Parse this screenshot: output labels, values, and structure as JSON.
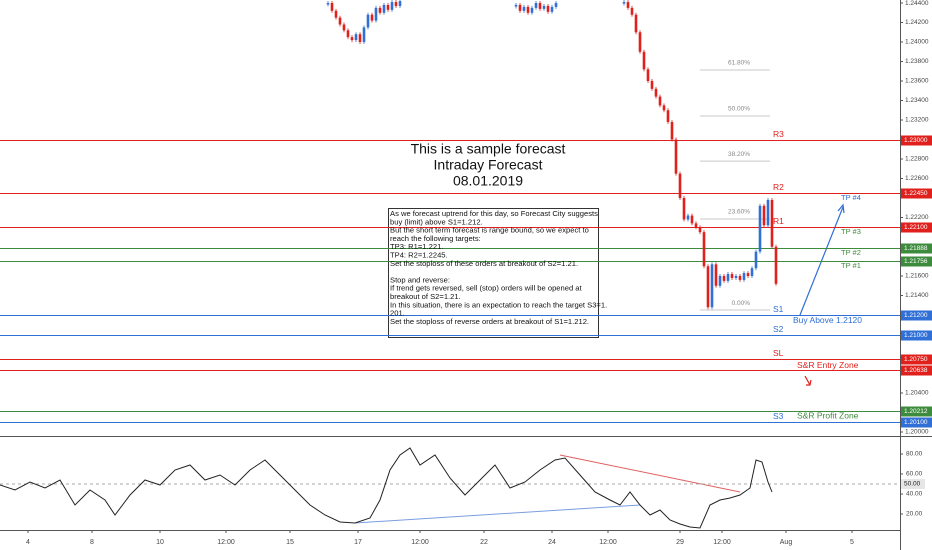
{
  "chart_data": {
    "type": "candlestick",
    "title": [
      "This is a sample forecast",
      "Intraday Forecast",
      "08.01.2019"
    ],
    "up_color": "#2f6fd6",
    "down_color": "#e0201c",
    "xlim": [
      0,
      225
    ],
    "xticks": [
      {
        "value": 7,
        "label": "4"
      },
      {
        "value": 23,
        "label": "8"
      },
      {
        "value": 40,
        "label": "10"
      },
      {
        "value": 56.5,
        "label": "12:00"
      },
      {
        "value": 72.5,
        "label": "15"
      },
      {
        "value": 89.5,
        "label": "17"
      },
      {
        "value": 105,
        "label": "12:00"
      },
      {
        "value": 121,
        "label": "22"
      },
      {
        "value": 138,
        "label": "24"
      },
      {
        "value": 152,
        "label": "12:00"
      },
      {
        "value": 170,
        "label": "29"
      },
      {
        "value": 180.5,
        "label": "12:00"
      },
      {
        "value": 196.5,
        "label": "Aug"
      },
      {
        "value": 213,
        "label": "5"
      }
    ],
    "ylim": [
      1.19959,
      1.24431
    ],
    "yticks": [
      {
        "value": 1.244,
        "label": "1.24400"
      },
      {
        "value": 1.242,
        "label": "1.24200"
      },
      {
        "value": 1.24,
        "label": "1.24000"
      },
      {
        "value": 1.238,
        "label": "1.23800"
      },
      {
        "value": 1.236,
        "label": "1.23600"
      },
      {
        "value": 1.234,
        "label": "1.23400"
      },
      {
        "value": 1.232,
        "label": "1.23200"
      },
      {
        "value": 1.228,
        "label": "1.22800"
      },
      {
        "value": 1.226,
        "label": "1.22600"
      },
      {
        "value": 1.222,
        "label": "1.22200"
      },
      {
        "value": 1.216,
        "label": "1.21600"
      },
      {
        "value": 1.214,
        "label": "1.21400"
      },
      {
        "value": 1.204,
        "label": "1.20400"
      },
      {
        "value": 1.2,
        "label": "1.20000"
      }
    ],
    "x": [
      82,
      83,
      84,
      85,
      86,
      87,
      88,
      89,
      90,
      91,
      92,
      93,
      94,
      95,
      96,
      97,
      98,
      99,
      100,
      101,
      129,
      130,
      131,
      132,
      133,
      134,
      135,
      136,
      137,
      138,
      139,
      140,
      156,
      157,
      158,
      159,
      160,
      161,
      162,
      163,
      164,
      165,
      166,
      167,
      168,
      169,
      170,
      171,
      172,
      173,
      174,
      175,
      176,
      177,
      178,
      179,
      180,
      181,
      182,
      183,
      184,
      185,
      186,
      187,
      188,
      189,
      190,
      191,
      192,
      193,
      194
    ],
    "values": [
      1.244,
      1.2432,
      1.2425,
      1.2418,
      1.2412,
      1.2405,
      1.2402,
      1.2408,
      1.24,
      1.2415,
      1.2428,
      1.2422,
      1.2435,
      1.243,
      1.2438,
      1.2433,
      1.2441,
      1.2437,
      1.2442,
      null,
      1.2438,
      1.2432,
      1.2436,
      1.243,
      1.2435,
      1.244,
      1.2434,
      1.2437,
      1.2431,
      1.2436,
      1.244,
      null,
      1.2441,
      1.2435,
      1.2428,
      1.241,
      1.239,
      1.2372,
      1.236,
      1.2352,
      1.2344,
      1.2335,
      1.233,
      1.2318,
      1.23,
      1.2265,
      1.224,
      1.2218,
      1.2222,
      1.2214,
      1.221,
      1.2205,
      1.217,
      1.2128,
      1.2172,
      1.215,
      1.216,
      1.2155,
      1.2162,
      1.2158,
      1.216,
      1.2156,
      1.2163,
      1.216,
      1.2168,
      1.2185,
      1.2232,
      1.2212,
      1.2238,
      1.219,
      1.2152
    ],
    "levels": {
      "values": [
        1.23,
        1.2245,
        1.221,
        1.21888,
        1.21756,
        1.212,
        1.21,
        1.2075,
        1.20638,
        1.20212,
        1.201
      ],
      "value_labels": [
        "1.23000",
        "1.22450",
        "1.22100",
        "1.21888",
        "1.21756",
        "1.21200",
        "1.21000",
        "1.20750",
        "1.20638",
        "1.20212",
        "1.20100"
      ],
      "colors": [
        "#e0201c",
        "#e0201c",
        "#e0201c",
        "#3d8b3d",
        "#3d8b3d",
        "#2f6fd6",
        "#2f6fd6",
        "#e0201c",
        "#e0201c",
        "#3d8b3d",
        "#2f6fd6"
      ],
      "names": [
        "R3",
        "R2",
        "R1",
        null,
        null,
        "S1",
        "S2",
        "SL",
        null,
        null,
        "S3"
      ]
    },
    "fib": {
      "values": [
        1.23713,
        1.23241,
        1.22779,
        1.22185,
        1.21251
      ],
      "value_labels": [
        "61.80%",
        "50.00%",
        "38.20%",
        "23.60%",
        "0.00%"
      ]
    },
    "targets": [
      {
        "text": "TP #4",
        "price": 1.2245,
        "color": "#2f6fd6"
      },
      {
        "text": "TP #3",
        "price": 1.221,
        "color": "#3d8b3d"
      },
      {
        "text": "TP #2",
        "price": 1.21888,
        "color": "#3d8b3d"
      },
      {
        "text": "TP #1",
        "price": 1.21756,
        "color": "#3d8b3d"
      }
    ],
    "notes": [
      {
        "text": "Buy Above 1.2120",
        "price": 1.2114,
        "color": "#2f6fd6"
      },
      {
        "text": "S&R Entry Zone",
        "price": 1.2068,
        "color": "#e0201c"
      },
      {
        "text": "S&R Profit Zone",
        "price": 1.2016,
        "color": "#3d8b3d"
      }
    ],
    "forecast_note": [
      [
        "As we forecast uptrend for this day, so Forecast City suggests",
        "buy (limit) above S1=1.212.",
        "But the short term forecast is range bound, so we expect to",
        "reach the following targets:",
        "TP3: R1=1.221.",
        "TP4: R2=1.2245.",
        "Set the stoploss of these orders at breakout of S2=1.21."
      ],
      [
        "Stop and reverse:",
        "If trend gets reversed, sell (stop) orders will be opened at",
        "breakout of S2=1.21.",
        "In this situation, there is an expectation to reach the target S3=1.",
        "201.",
        "Set the stoploss of reverse orders at breakout of S1=1.212."
      ]
    ],
    "rsi": {
      "color": "#222222",
      "ylim": [
        4,
        98
      ],
      "yticks": [
        {
          "value": 20,
          "label": "20.00"
        },
        {
          "value": 40,
          "label": "40.00"
        },
        {
          "value": 60,
          "label": "60.00"
        },
        {
          "value": 80,
          "label": "80.00"
        }
      ],
      "midline": {
        "value": 50,
        "label": "50.00"
      },
      "x": [
        0,
        3.75,
        7.5,
        11.25,
        15,
        18.75,
        22.5,
        26.25,
        28.75,
        32.5,
        36.25,
        40,
        43.75,
        47.5,
        51.25,
        55,
        58.75,
        62.5,
        66.25,
        70,
        73.75,
        77.5,
        81.25,
        85,
        88.75,
        92.5,
        95,
        97.5,
        100,
        102.5,
        105,
        108.75,
        112.5,
        116.25,
        120,
        123.75,
        127.5,
        131.25,
        135,
        138.75,
        141.25,
        145,
        148.75,
        152.5,
        155,
        157.5,
        160,
        162.5,
        165,
        167.5,
        170,
        172.5,
        175,
        177.5,
        180,
        182.5,
        185,
        187.5,
        189,
        190.5,
        192,
        193
      ],
      "values": [
        49,
        44,
        52,
        46,
        54,
        29,
        44,
        34,
        19,
        39,
        54,
        49,
        64,
        69,
        54,
        59,
        49,
        64,
        74,
        59,
        44,
        29,
        19,
        12,
        11,
        16,
        34,
        64,
        79,
        86,
        69,
        79,
        56,
        39,
        54,
        69,
        46,
        52,
        64,
        74,
        76,
        59,
        42,
        34,
        29,
        42,
        29,
        19,
        24,
        14,
        10,
        7,
        6,
        29,
        34,
        36,
        39,
        46,
        74,
        72,
        52,
        42
      ]
    }
  }
}
